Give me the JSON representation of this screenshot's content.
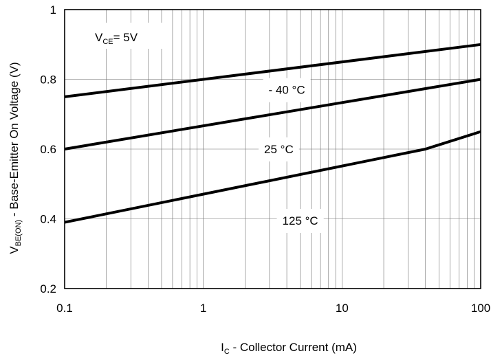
{
  "chart_data": {
    "type": "line",
    "x_scale": "log",
    "xlim": [
      0.1,
      100
    ],
    "ylim": [
      0.2,
      1.0
    ],
    "grid": true,
    "x_ticks": [
      "0.1",
      "1",
      "10",
      "100"
    ],
    "x_tick_values": [
      0.1,
      1,
      10,
      100
    ],
    "y_ticks": [
      "0.2",
      "0.4",
      "0.6",
      "0.8",
      "1"
    ],
    "y_tick_values": [
      0.2,
      0.4,
      0.6,
      0.8,
      1.0
    ],
    "xlabel": {
      "main": "I",
      "sub": "C",
      "rest": " - Collector Current (mA)"
    },
    "ylabel": {
      "main": "V",
      "sub": "BE(ON)",
      "rest": " - Base-Emitter On Voltage (V)"
    },
    "condition": {
      "main": "V",
      "sub": "CE",
      "rest": "= 5V"
    },
    "series": [
      {
        "name": "- 40 °C",
        "x": [
          0.1,
          100
        ],
        "y": [
          0.75,
          0.9
        ],
        "label_at": {
          "x": 4,
          "y": 0.77
        }
      },
      {
        "name": "25 °C",
        "x": [
          0.1,
          100
        ],
        "y": [
          0.6,
          0.8
        ],
        "label_at": {
          "x": 3.5,
          "y": 0.6
        }
      },
      {
        "name": "125 °C",
        "x": [
          0.1,
          40,
          100
        ],
        "y": [
          0.39,
          0.6,
          0.65
        ],
        "label_at": {
          "x": 5,
          "y": 0.395
        }
      }
    ]
  }
}
